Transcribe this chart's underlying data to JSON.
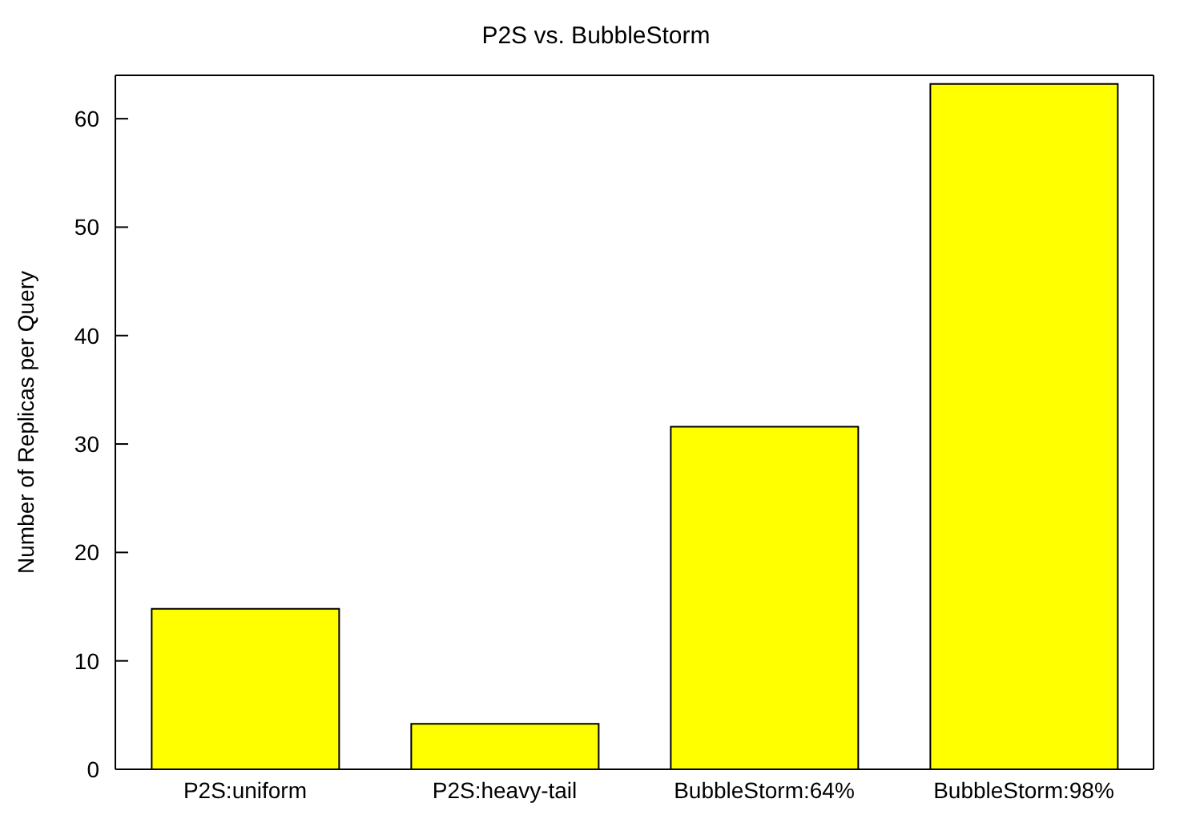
{
  "chart_data": {
    "type": "bar",
    "title": "P2S vs. BubbleStorm",
    "ylabel": "Number of Replicas per Query",
    "categories": [
      "P2S:uniform",
      "P2S:heavy-tail",
      "BubbleStorm:64%",
      "BubbleStorm:98%"
    ],
    "values": [
      14.8,
      4.2,
      31.6,
      63.2
    ],
    "color": "#ffff00",
    "ylim": [
      0,
      64
    ],
    "yticks": [
      0,
      10,
      20,
      30,
      40,
      50,
      60
    ],
    "grid": false
  }
}
